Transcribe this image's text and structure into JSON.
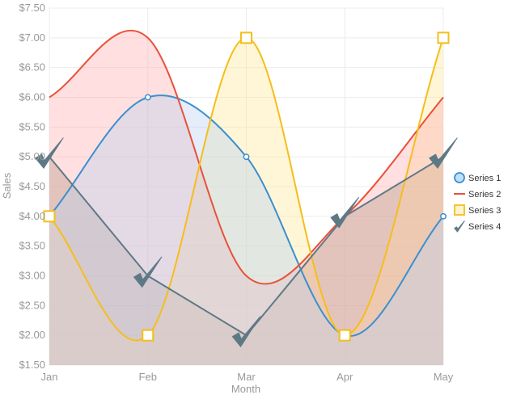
{
  "chart_data": {
    "type": "area",
    "title": "",
    "xlabel": "Month",
    "ylabel": "Sales",
    "categories": [
      "Jan",
      "Feb",
      "Mar",
      "Apr",
      "May"
    ],
    "ylim": [
      1.5,
      7.5
    ],
    "y_step": 0.5,
    "y_tick_labels": [
      "$1.50",
      "$2.00",
      "$2.50",
      "$3.00",
      "$3.50",
      "$4.00",
      "$4.50",
      "$5.00",
      "$5.50",
      "$6.00",
      "$6.50",
      "$7.00",
      "$7.50"
    ],
    "grid": true,
    "legend_position": "right",
    "series": [
      {
        "name": "Series 1",
        "values": [
          4,
          6,
          5,
          2,
          4
        ],
        "color": "#3a8fd0",
        "fill": "#bcd3ef",
        "curve": "spline",
        "marker": "circle"
      },
      {
        "name": "Series 2",
        "values": [
          6,
          7,
          3,
          4,
          6
        ],
        "color": "#e8513a",
        "fill": "#ffb0b0",
        "curve": "spline",
        "marker": "none"
      },
      {
        "name": "Series 3",
        "values": [
          4,
          2,
          7,
          2,
          7
        ],
        "color": "#f5be1a",
        "fill": "#fde89a",
        "curve": "spline",
        "marker": "square"
      },
      {
        "name": "Series 4",
        "values": [
          5,
          3,
          2,
          4,
          5
        ],
        "color": "#5e7986",
        "fill": "#8a8f72",
        "curve": "linear",
        "marker": "check"
      }
    ]
  }
}
